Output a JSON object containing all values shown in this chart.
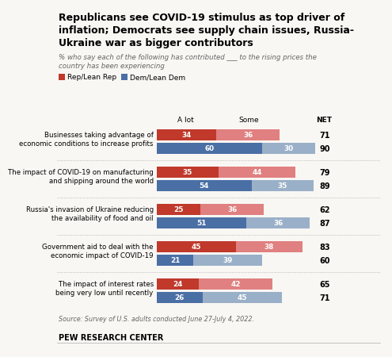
{
  "title_line1": "Republicans see COVID-19 stimulus as top driver of",
  "title_line2": "inflation; Democrats see supply chain issues, Russia-",
  "title_line3": "Ukraine war as bigger contributors",
  "subtitle": "% who say each of the following has contributed ___ to the rising prices the\ncountry has been experiencing",
  "legend_rep": "Rep/Lean Rep",
  "legend_dem": "Dem/Lean Dem",
  "categories": [
    "Businesses taking advantage of\neconomic conditions to increase profits",
    "The impact of COVID-19 on manufacturing\nand shipping around the world",
    "Russia's invasion of Ukraine reducing\nthe availability of food and oil",
    "Government aid to deal with the\neconomic impact of COVID-19",
    "The impact of interest rates\nbeing very low until recently"
  ],
  "rep_alot": [
    34,
    35,
    25,
    45,
    24
  ],
  "rep_some": [
    36,
    44,
    36,
    38,
    42
  ],
  "rep_net": [
    71,
    79,
    62,
    83,
    65
  ],
  "dem_alot": [
    60,
    54,
    51,
    21,
    26
  ],
  "dem_some": [
    30,
    35,
    36,
    39,
    45
  ],
  "dem_net": [
    90,
    89,
    87,
    60,
    71
  ],
  "rep_alot_color": "#c0392b",
  "rep_some_color": "#e08080",
  "dem_alot_color": "#4a6fa5",
  "dem_some_color": "#9ab0c8",
  "source": "Source: Survey of U.S. adults conducted June 27-July 4, 2022.",
  "footer": "PEW RESEARCH CENTER",
  "bg_color": "#f9f7f4"
}
